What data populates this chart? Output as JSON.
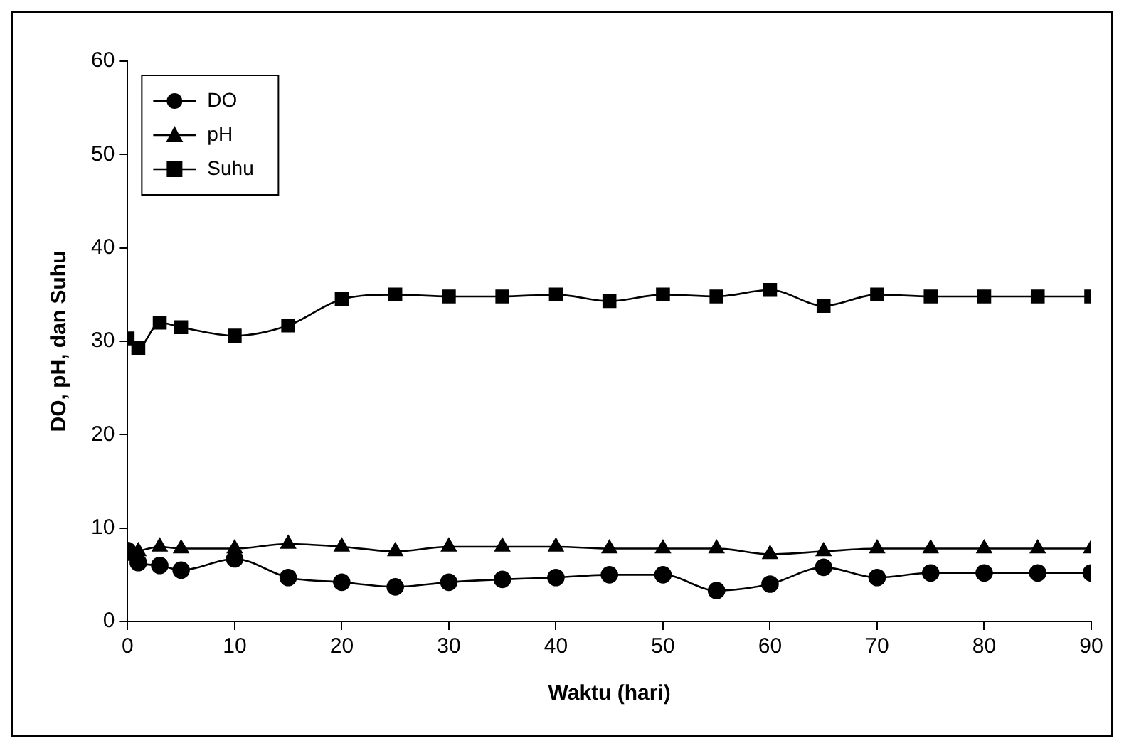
{
  "chart_data": {
    "type": "line",
    "xlabel": "Waktu (hari)",
    "ylabel": "DO, pH, dan Suhu",
    "x": [
      0,
      1,
      3,
      5,
      10,
      15,
      20,
      25,
      30,
      35,
      40,
      45,
      50,
      55,
      60,
      65,
      70,
      75,
      80,
      85,
      90
    ],
    "series": [
      {
        "name": "DO",
        "color": "#000000",
        "marker": "circle",
        "values": [
          7.6,
          6.3,
          6,
          5.5,
          6.7,
          4.7,
          4.2,
          3.7,
          4.2,
          4.5,
          4.7,
          5,
          5,
          3.3,
          4,
          5.8,
          4.7,
          5.2,
          5.2,
          5.2,
          5.2
        ]
      },
      {
        "name": "pH",
        "color": "#000000",
        "marker": "triangle",
        "values": [
          7,
          7.5,
          8,
          7.8,
          7.8,
          8.3,
          8,
          7.5,
          8,
          8,
          8,
          7.8,
          7.8,
          7.8,
          7.2,
          7.5,
          7.8,
          7.8,
          7.8,
          7.8,
          7.8
        ]
      },
      {
        "name": "Suhu",
        "color": "#000000",
        "marker": "square",
        "values": [
          30.3,
          29.3,
          32,
          31.5,
          30.6,
          31.7,
          34.5,
          35,
          34.8,
          34.8,
          35,
          34.3,
          35,
          34.8,
          35.5,
          33.8,
          35,
          34.8,
          34.8,
          34.8,
          34.8
        ]
      }
    ],
    "xlim": [
      0,
      90
    ],
    "xticks": [
      0,
      10,
      20,
      30,
      40,
      50,
      60,
      70,
      80,
      90
    ],
    "ylim": [
      0,
      60
    ],
    "yticks": [
      0,
      10,
      20,
      30,
      40,
      50,
      60
    ],
    "grid": false,
    "legend": "top left"
  }
}
